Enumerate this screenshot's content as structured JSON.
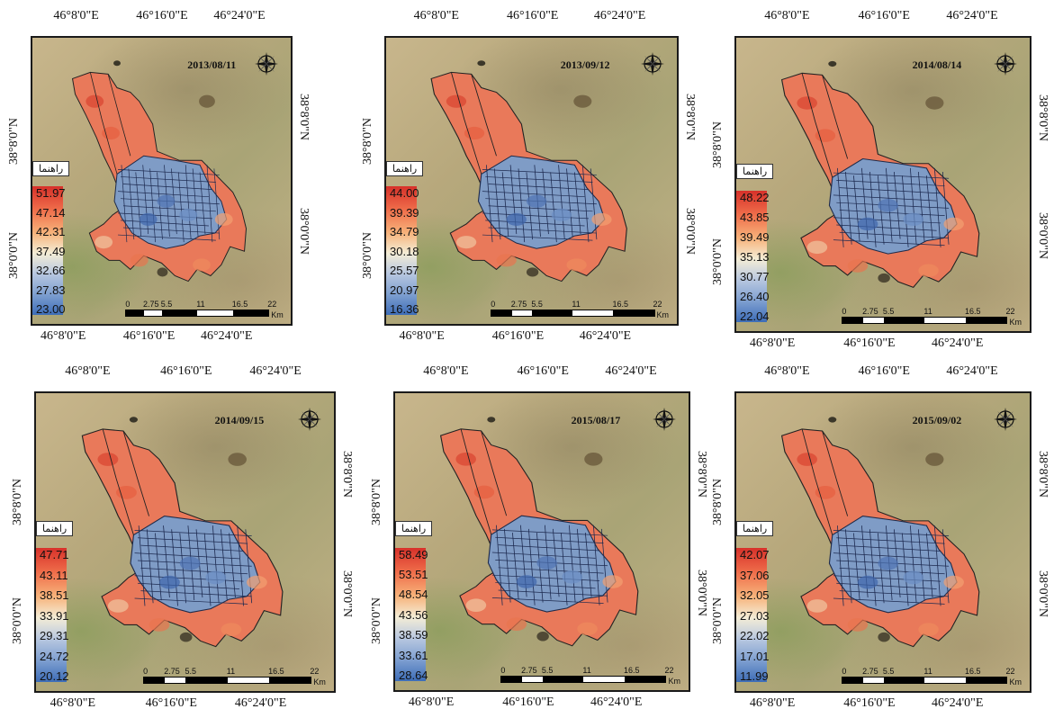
{
  "legend_title": "راهنما",
  "scale": {
    "ticks": [
      "0",
      "2.75",
      "5.5",
      "11",
      "16.5",
      "22"
    ],
    "unit": "Km"
  },
  "compass": {
    "n": "N",
    "s": "S",
    "e": "E",
    "w": "W"
  },
  "lon_labels": [
    "46°8'0\"E",
    "46°16'0\"E",
    "46°24'0\"E"
  ],
  "lat_labels": [
    "38°8'0\"N",
    "38°0'0\"N"
  ],
  "colors": {
    "high": "#d7312a",
    "mid": "#f4edd6",
    "low": "#3d6db8"
  },
  "panels": [
    {
      "date": "2013/08/11",
      "legend": [
        "51.97",
        "47.14",
        "42.31",
        "37.49",
        "32.66",
        "27.83",
        "23.00"
      ]
    },
    {
      "date": "2013/09/12",
      "legend": [
        "44.00",
        "39.39",
        "34.79",
        "30.18",
        "25.57",
        "20.97",
        "16.36"
      ]
    },
    {
      "date": "2014/08/14",
      "legend": [
        "48.22",
        "43.85",
        "39.49",
        "35.13",
        "30.77",
        "26.40",
        "22.04"
      ]
    },
    {
      "date": "2014/09/15",
      "legend": [
        "47.71",
        "43.11",
        "38.51",
        "33.91",
        "29.31",
        "24.72",
        "20.12"
      ]
    },
    {
      "date": "2015/08/17",
      "legend": [
        "58.49",
        "53.51",
        "48.54",
        "43.56",
        "38.59",
        "33.61",
        "28.64"
      ]
    },
    {
      "date": "2015/09/02",
      "legend": [
        "42.07",
        "37.06",
        "32.05",
        "27.03",
        "22.02",
        "17.01",
        "11.99"
      ]
    }
  ]
}
